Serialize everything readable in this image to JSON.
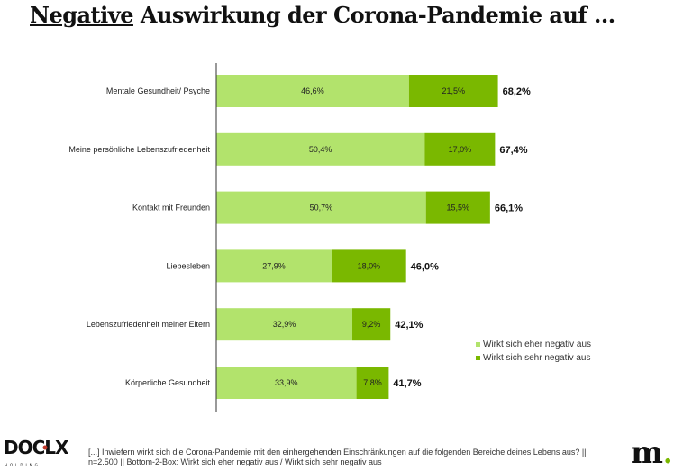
{
  "chart_data": {
    "type": "bar",
    "orientation": "horizontal",
    "stacked": true,
    "title_highlight": "Negative",
    "title_rest": "Auswirkung der Corona-Pandemie auf ...",
    "categories": [
      "Mentale Gesundheit/ Psyche",
      "Meine persönliche Lebenszufriedenheit",
      "Kontakt mit Freunden",
      "Liebesleben",
      "Lebenszufriedenheit meiner Eltern",
      "Körperliche Gesundheit"
    ],
    "series": [
      {
        "name": "Wirkt sich eher negativ aus",
        "color": "#b2e36c",
        "values": [
          46.6,
          50.4,
          50.7,
          27.9,
          32.9,
          33.9
        ],
        "labels": [
          "46,6%",
          "50,4%",
          "50,7%",
          "27,9%",
          "32,9%",
          "33,9%"
        ]
      },
      {
        "name": "Wirkt sich sehr negativ aus",
        "color": "#7ab800",
        "values": [
          21.5,
          17.0,
          15.5,
          18.0,
          9.2,
          7.8
        ],
        "labels": [
          "21,5%",
          "17,0%",
          "15,5%",
          "18,0%",
          "9,2%",
          "7,8%"
        ]
      }
    ],
    "totals": [
      "68,2%",
      "67,4%",
      "66,1%",
      "46,0%",
      "42,1%",
      "41,7%"
    ],
    "xlim": [
      0,
      100
    ],
    "grid": false,
    "legend_placement": "bottom-right"
  },
  "footnote_line1": "[...] Inwiefern wirkt sich die Corona-Pandemie mit den einhergehenden Einschränkungen auf die folgenden Bereiche deines Lebens aus? ||",
  "footnote_line2": "n=2.500 || Bottom-2-Box: Wirkt sich eher negativ aus / Wirkt sich sehr negativ aus",
  "logos": {
    "left": "DOCLX HOLDING",
    "right": "m."
  }
}
